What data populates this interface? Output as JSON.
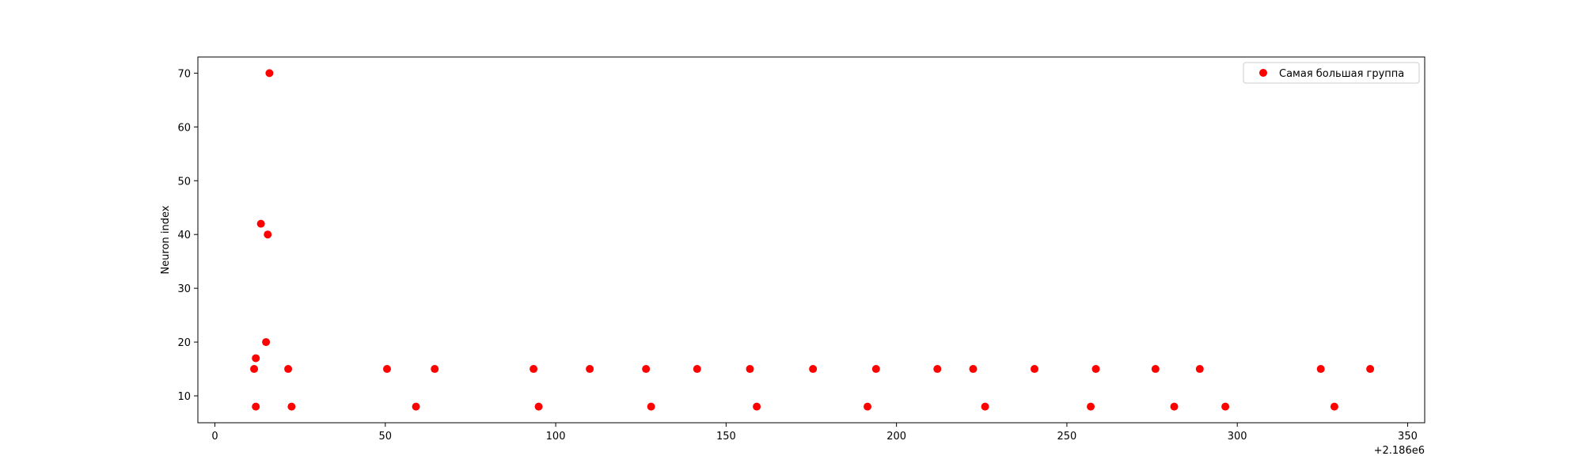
{
  "chart_data": {
    "type": "scatter",
    "xlabel": "",
    "ylabel": "Neuron index",
    "x_offset_label": "+2.186e6",
    "xlim": [
      -5,
      355
    ],
    "ylim": [
      5,
      73
    ],
    "xticks": [
      0,
      50,
      100,
      150,
      200,
      250,
      300,
      350
    ],
    "yticks": [
      10,
      20,
      30,
      40,
      50,
      60,
      70
    ],
    "grid": false,
    "legend_position": "top-right",
    "series": [
      {
        "name": "Самая большая группа",
        "color": "#ff0000",
        "x": [
          11.5,
          12,
          12,
          13.5,
          15,
          15.5,
          16,
          21.5,
          22.5,
          50.5,
          59,
          64.5,
          93.5,
          95,
          110,
          126.5,
          128,
          141.5,
          157,
          159,
          175.5,
          191.5,
          194,
          212,
          222.5,
          226,
          240.5,
          257,
          258.5,
          276,
          281.5,
          289,
          296.5,
          324.5,
          328.5,
          339
        ],
        "y": [
          15,
          8,
          17,
          42,
          20,
          40,
          70,
          15,
          8,
          15,
          8,
          15,
          15,
          8,
          15,
          15,
          8,
          15,
          15,
          8,
          15,
          8,
          15,
          15,
          15,
          8,
          15,
          8,
          15,
          15,
          8,
          15,
          8,
          15,
          8,
          15
        ]
      }
    ]
  }
}
